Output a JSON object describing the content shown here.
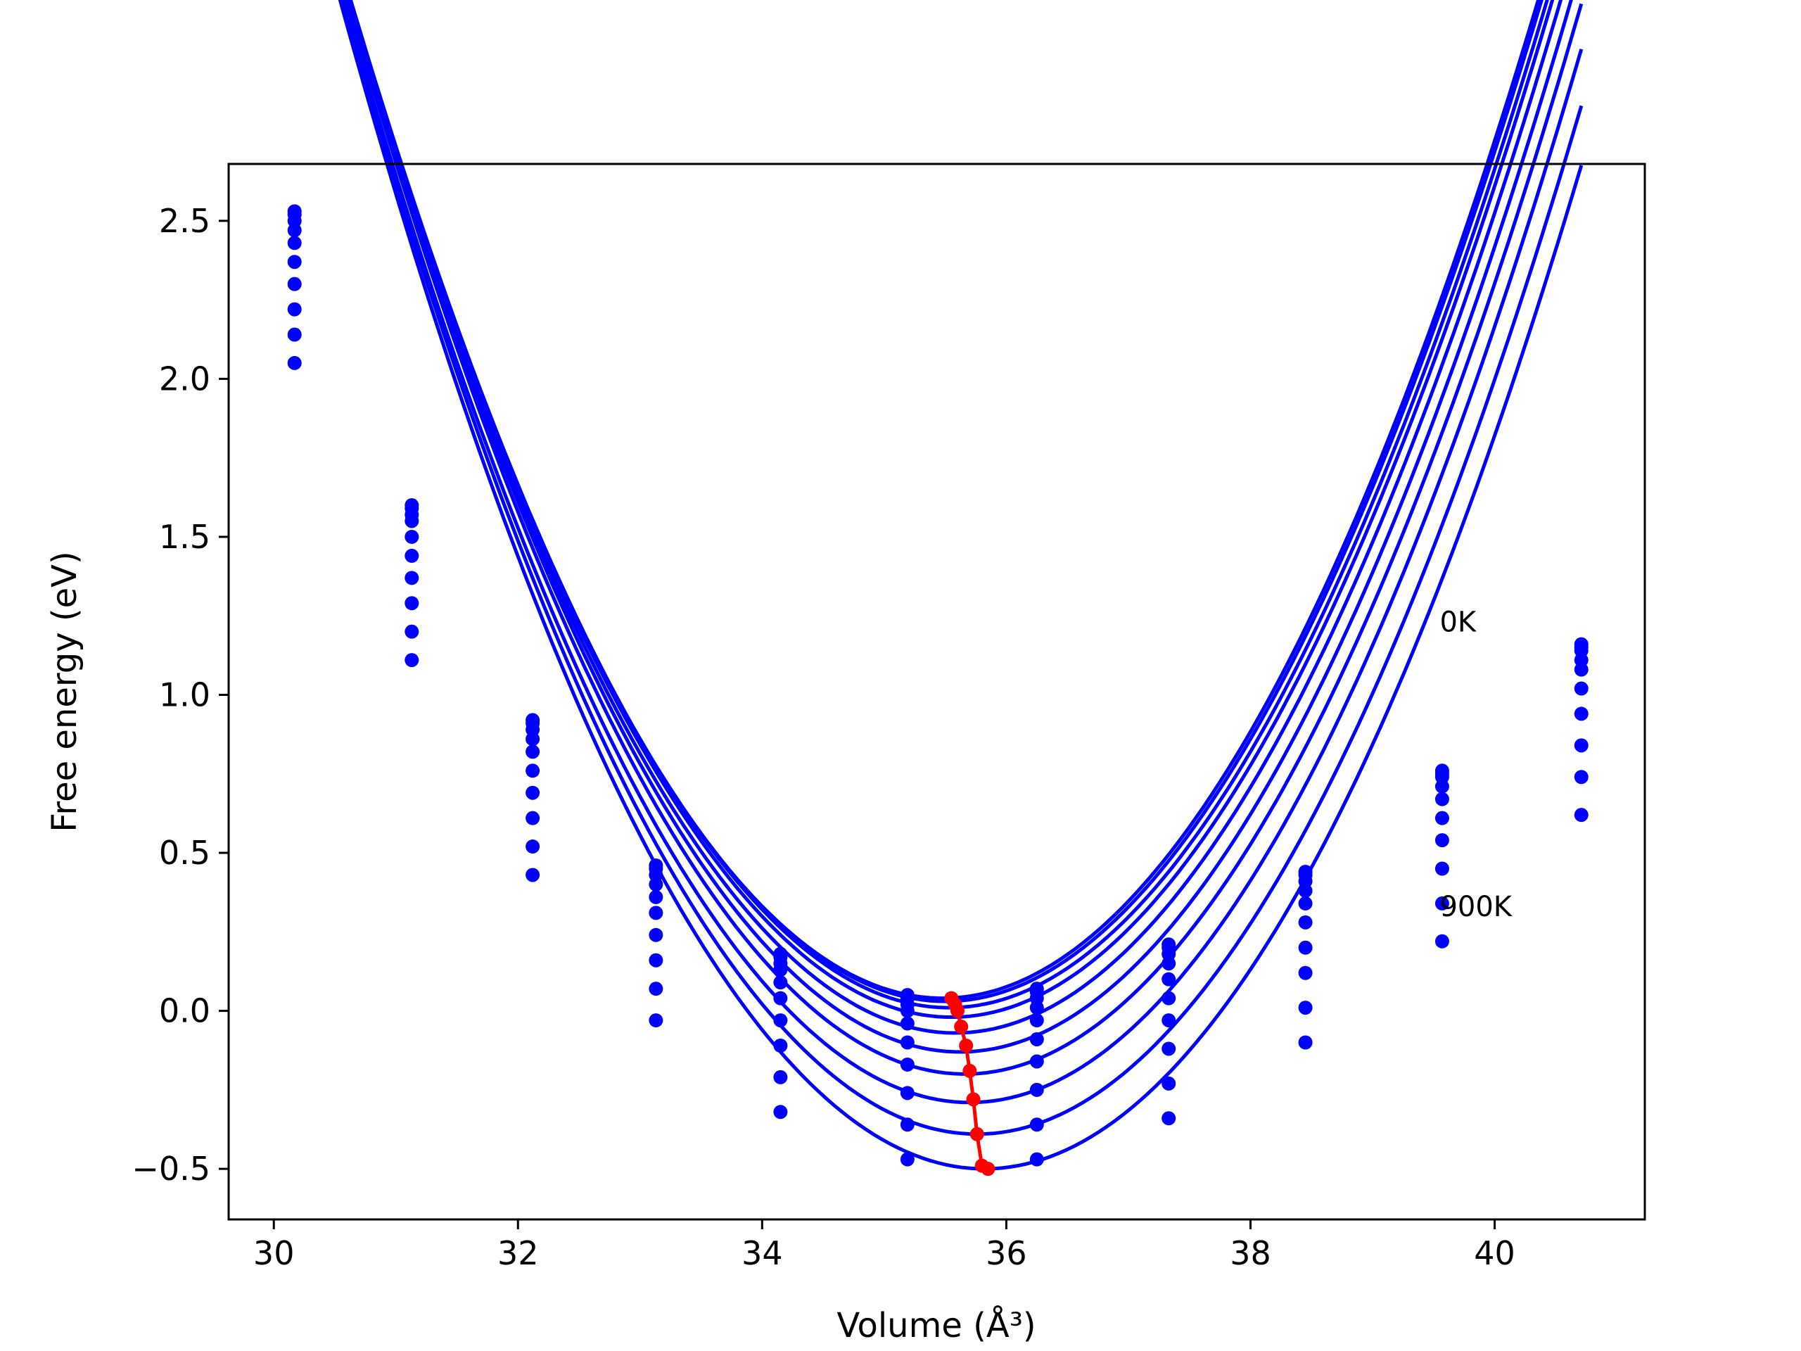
{
  "chart_data": {
    "type": "line",
    "xlabel": "Volume (Å³)",
    "ylabel": "Free energy (eV)",
    "xlim": [
      29.63,
      41.23
    ],
    "ylim": [
      -0.66,
      2.68
    ],
    "xticks": [
      30,
      32,
      34,
      36,
      38,
      40
    ],
    "xtick_labels": [
      "30",
      "32",
      "34",
      "36",
      "38",
      "40"
    ],
    "yticks": [
      -0.5,
      0.0,
      0.5,
      1.0,
      1.5,
      2.0,
      2.5
    ],
    "ytick_labels": [
      "−0.5",
      "0.0",
      "0.5",
      "1.0",
      "1.5",
      "2.0",
      "2.5"
    ],
    "grid": false,
    "annotations": [
      {
        "text": "0K",
        "x": 39.55,
        "y": 1.2
      },
      {
        "text": "900K",
        "x": 39.55,
        "y": 0.3
      }
    ],
    "volumes": [
      30.17,
      31.13,
      32.12,
      33.13,
      34.15,
      35.19,
      36.25,
      37.33,
      38.45,
      39.57,
      40.71
    ],
    "series": [
      {
        "color": "#0000ff",
        "fit": {
          "a": 0.1328,
          "v0": 35.48,
          "e0": 0.04
        },
        "values": [
          2.53,
          1.6,
          0.92,
          0.46,
          0.18,
          0.05,
          0.07,
          0.21,
          0.44,
          0.76,
          1.16
        ]
      },
      {
        "color": "#0000ff",
        "fit": {
          "a": 0.1328,
          "v0": 35.5,
          "e0": 0.03
        },
        "values": [
          2.52,
          1.59,
          0.91,
          0.45,
          0.17,
          0.04,
          0.06,
          0.2,
          0.43,
          0.75,
          1.15
        ]
      },
      {
        "color": "#0000ff",
        "fit": {
          "a": 0.1328,
          "v0": 35.53,
          "e0": 0.01
        },
        "values": [
          2.5,
          1.57,
          0.89,
          0.43,
          0.15,
          0.02,
          0.04,
          0.18,
          0.41,
          0.74,
          1.14
        ]
      },
      {
        "color": "#0000ff",
        "fit": {
          "a": 0.1328,
          "v0": 35.55,
          "e0": -0.02
        },
        "values": [
          2.47,
          1.55,
          0.86,
          0.4,
          0.13,
          0.0,
          0.01,
          0.15,
          0.38,
          0.71,
          1.11
        ]
      },
      {
        "color": "#0000ff",
        "fit": {
          "a": 0.1328,
          "v0": 35.58,
          "e0": -0.07
        },
        "values": [
          2.43,
          1.5,
          0.82,
          0.36,
          0.09,
          -0.04,
          -0.03,
          0.1,
          0.34,
          0.67,
          1.08
        ]
      },
      {
        "color": "#0000ff",
        "fit": {
          "a": 0.1328,
          "v0": 35.62,
          "e0": -0.13
        },
        "values": [
          2.37,
          1.44,
          0.76,
          0.31,
          0.04,
          -0.1,
          -0.09,
          0.04,
          0.28,
          0.61,
          1.02
        ]
      },
      {
        "color": "#0000ff",
        "fit": {
          "a": 0.1328,
          "v0": 35.66,
          "e0": -0.2
        },
        "values": [
          2.3,
          1.37,
          0.69,
          0.24,
          -0.03,
          -0.17,
          -0.16,
          -0.03,
          0.2,
          0.54,
          0.94
        ]
      },
      {
        "color": "#0000ff",
        "fit": {
          "a": 0.1328,
          "v0": 35.7,
          "e0": -0.29
        },
        "values": [
          2.22,
          1.29,
          0.61,
          0.16,
          -0.11,
          -0.26,
          -0.25,
          -0.12,
          0.12,
          0.45,
          0.84
        ]
      },
      {
        "color": "#0000ff",
        "fit": {
          "a": 0.1328,
          "v0": 35.76,
          "e0": -0.39
        },
        "values": [
          2.14,
          1.2,
          0.52,
          0.07,
          -0.21,
          -0.36,
          -0.36,
          -0.23,
          0.01,
          0.34,
          0.74
        ]
      },
      {
        "color": "#0000ff",
        "fit": {
          "a": 0.1328,
          "v0": 35.82,
          "e0": -0.5
        },
        "values": [
          2.05,
          1.11,
          0.43,
          -0.03,
          -0.32,
          -0.47,
          -0.47,
          -0.34,
          -0.1,
          0.22,
          0.62
        ]
      }
    ],
    "minima": {
      "color": "#ff0000",
      "x": [
        35.55,
        35.58,
        35.6,
        35.63,
        35.67,
        35.7,
        35.73,
        35.76,
        35.8,
        35.85
      ],
      "y": [
        0.04,
        0.02,
        0.0,
        -0.05,
        -0.11,
        -0.19,
        -0.28,
        -0.39,
        -0.49,
        -0.5
      ]
    }
  }
}
